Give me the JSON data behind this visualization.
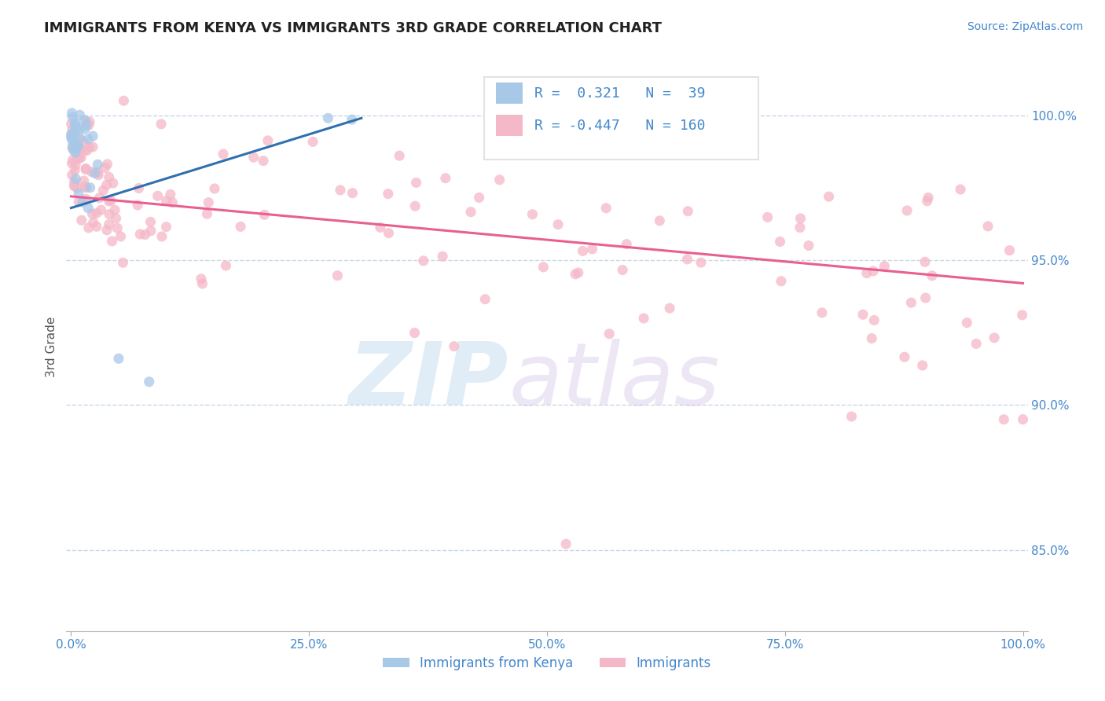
{
  "title": "IMMIGRANTS FROM KENYA VS IMMIGRANTS 3RD GRADE CORRELATION CHART",
  "source_text": "Source: ZipAtlas.com",
  "ylabel": "3rd Grade",
  "legend_R_blue": "0.321",
  "legend_N_blue": "39",
  "legend_R_pink": "-0.447",
  "legend_N_pink": "160",
  "legend_label_blue": "Immigrants from Kenya",
  "legend_label_pink": "Immigrants",
  "blue_color": "#a8c8e8",
  "pink_color": "#f4b8c8",
  "blue_line_color": "#3070b0",
  "pink_line_color": "#e86090",
  "axis_label_color": "#4488cc",
  "background_color": "#ffffff",
  "grid_color": "#c8d8e8",
  "right_yticks": [
    0.85,
    0.9,
    0.95,
    1.0
  ],
  "right_yticklabels": [
    "85.0%",
    "90.0%",
    "95.0%",
    "100.0%"
  ],
  "ymin": 0.822,
  "ymax": 1.018,
  "xmin": -0.005,
  "xmax": 1.005,
  "xticks": [
    0.0,
    0.25,
    0.5,
    0.75,
    1.0
  ],
  "xticklabels": [
    "0.0%",
    "25.0%",
    "50.0%",
    "75.0%",
    "100.0%"
  ],
  "blue_line_x": [
    0.0,
    0.305
  ],
  "blue_line_y": [
    0.968,
    0.999
  ],
  "pink_line_x": [
    0.0,
    1.0
  ],
  "pink_line_y": [
    0.972,
    0.942
  ]
}
